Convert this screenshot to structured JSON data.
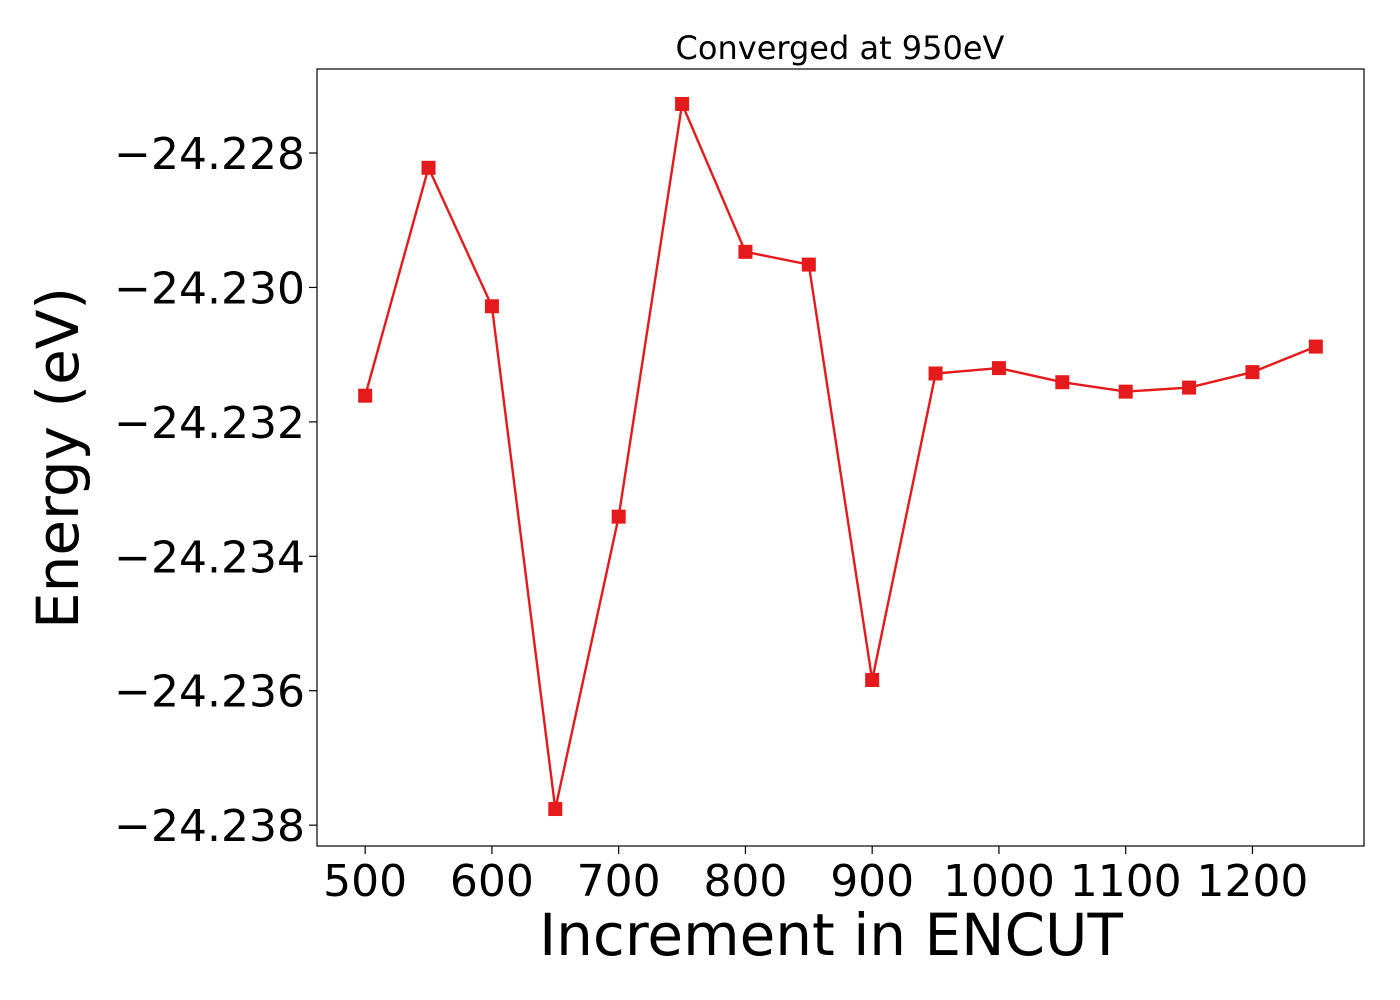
{
  "chart_data": {
    "type": "line",
    "title": "Converged at 950eV",
    "xlabel": "Increment in ENCUT",
    "ylabel": "Energy (eV)",
    "x": [
      500,
      550,
      600,
      650,
      700,
      750,
      800,
      850,
      900,
      950,
      1000,
      1050,
      1100,
      1150,
      1200,
      1250
    ],
    "series": [
      {
        "color": "#e41a1c",
        "marker": "square",
        "values": [
          -24.23161,
          -24.22822,
          -24.23028,
          -24.23776,
          -24.23341,
          -24.22727,
          -24.22947,
          -24.22966,
          -24.23584,
          -24.23128,
          -24.2312,
          -24.23141,
          -24.23155,
          -24.23149,
          -24.23126,
          -24.23088
        ]
      }
    ],
    "xticks": [
      500,
      600,
      700,
      800,
      900,
      1000,
      1100,
      1200
    ],
    "xtick_labels": [
      "500",
      "600",
      "700",
      "800",
      "900",
      "1000",
      "1100",
      "1200"
    ],
    "yticks": [
      -24.228,
      -24.23,
      -24.232,
      -24.234,
      -24.236,
      -24.238
    ],
    "ytick_labels": [
      "−24.228",
      "−24.230",
      "−24.232",
      "−24.234",
      "−24.236",
      "−24.238"
    ],
    "xlim": [
      462,
      1288
    ],
    "ylim": [
      -24.23831,
      -24.22675
    ],
    "grid": false,
    "legend": "none"
  }
}
